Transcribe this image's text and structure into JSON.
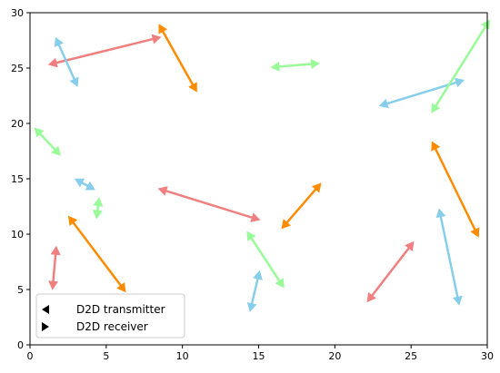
{
  "chart_data": {
    "type": "scatter",
    "xlim": [
      0,
      30
    ],
    "ylim": [
      0,
      30
    ],
    "x_ticks": [
      0,
      5,
      10,
      15,
      20,
      25,
      30
    ],
    "y_ticks": [
      0,
      5,
      10,
      15,
      20,
      25,
      30
    ],
    "grid": false,
    "legend_placement": "lower-left",
    "legend": [
      {
        "marker": "triangle-left",
        "label": "D2D transmitter"
      },
      {
        "marker": "triangle-right",
        "label": "D2D receiver"
      }
    ],
    "colors": {
      "salmon": "#f08080",
      "orange": "#ff8c00",
      "skyblue": "#87ceeb",
      "lightgreen": "#98fb98"
    },
    "links": [
      {
        "color": "salmon",
        "tx": [
          1.5,
          25.4
        ],
        "rx": [
          8.3,
          27.7
        ]
      },
      {
        "color": "salmon",
        "tx": [
          8.7,
          14.0
        ],
        "rx": [
          14.8,
          11.4
        ]
      },
      {
        "color": "salmon",
        "tx": [
          1.7,
          8.5
        ],
        "rx": [
          1.5,
          5.4
        ]
      },
      {
        "color": "salmon",
        "tx": [
          25.0,
          9.0
        ],
        "rx": [
          22.3,
          4.2
        ]
      },
      {
        "color": "orange",
        "tx": [
          8.6,
          28.6
        ],
        "rx": [
          10.8,
          23.2
        ]
      },
      {
        "color": "orange",
        "tx": [
          2.7,
          11.3
        ],
        "rx": [
          6.1,
          5.1
        ]
      },
      {
        "color": "orange",
        "tx": [
          16.7,
          10.8
        ],
        "rx": [
          18.9,
          14.3
        ]
      },
      {
        "color": "orange",
        "tx": [
          26.5,
          18.0
        ],
        "rx": [
          29.3,
          10.1
        ]
      },
      {
        "color": "skyblue",
        "tx": [
          1.8,
          27.4
        ],
        "rx": [
          3.0,
          23.7
        ]
      },
      {
        "color": "skyblue",
        "tx": [
          3.2,
          14.8
        ],
        "rx": [
          4.0,
          14.2
        ]
      },
      {
        "color": "skyblue",
        "tx": [
          15.0,
          6.3
        ],
        "rx": [
          14.5,
          3.4
        ]
      },
      {
        "color": "skyblue",
        "tx": [
          23.2,
          21.7
        ],
        "rx": [
          28.2,
          23.8
        ]
      },
      {
        "color": "skyblue",
        "tx": [
          26.9,
          11.9
        ],
        "rx": [
          28.1,
          4.0
        ]
      },
      {
        "color": "lightgreen",
        "tx": [
          16.1,
          25.1
        ],
        "rx": [
          18.7,
          25.4
        ]
      },
      {
        "color": "lightgreen",
        "tx": [
          0.5,
          19.3
        ],
        "rx": [
          1.8,
          17.4
        ]
      },
      {
        "color": "lightgreen",
        "tx": [
          4.5,
          12.9
        ],
        "rx": [
          4.4,
          11.8
        ]
      },
      {
        "color": "lightgreen",
        "tx": [
          14.4,
          9.9
        ],
        "rx": [
          16.5,
          5.5
        ]
      },
      {
        "color": "lightgreen",
        "tx": [
          30.0,
          29.0
        ],
        "rx": [
          26.5,
          21.3
        ]
      }
    ]
  }
}
